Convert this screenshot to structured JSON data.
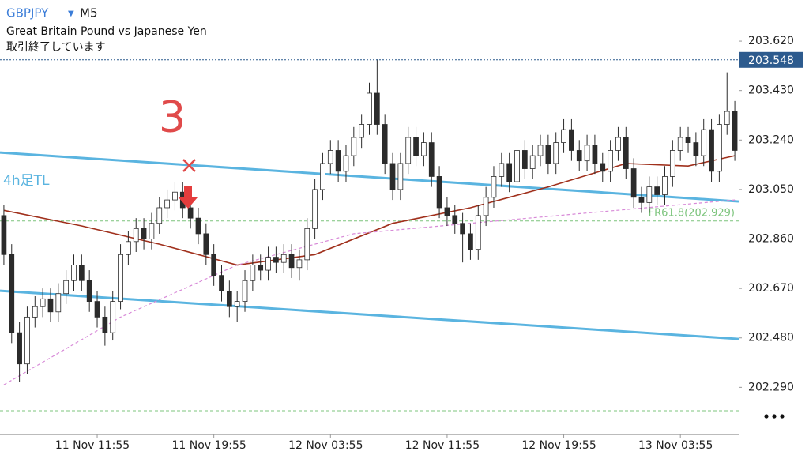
{
  "header": {
    "symbol": "GBPJPY",
    "timeframe": "M5",
    "description": "Great Britain Pound vs Japanese Yen",
    "status": "取引終了しています"
  },
  "chart_data": {
    "type": "candlestick",
    "categories": [
      null,
      null,
      null,
      null,
      null,
      null,
      null,
      null,
      null,
      null,
      null,
      null,
      "11 Nov 11:55",
      null,
      null,
      null,
      null,
      null,
      null,
      null,
      null,
      null,
      null,
      null,
      null,
      null,
      null,
      "11 Nov 19:55",
      null,
      null,
      null,
      null,
      null,
      null,
      null,
      null,
      null,
      null,
      null,
      null,
      null,
      null,
      "12 Nov 03:55",
      null,
      null,
      null,
      null,
      null,
      null,
      null,
      null,
      null,
      null,
      null,
      null,
      null,
      null,
      "12 Nov 11:55",
      null,
      null,
      null,
      null,
      null,
      null,
      null,
      null,
      null,
      null,
      null,
      null,
      null,
      null,
      "12 Nov 19:55",
      null,
      null,
      null,
      null,
      null,
      null,
      null,
      null,
      null,
      null,
      null,
      null,
      null,
      null,
      "13 Nov 03:55",
      null,
      null,
      null,
      null,
      null,
      null,
      null
    ],
    "open": [
      202.95,
      202.8,
      202.5,
      202.38,
      202.56,
      202.6,
      202.63,
      202.58,
      202.65,
      202.7,
      202.76,
      202.7,
      202.62,
      202.56,
      202.5,
      202.62,
      202.8,
      202.85,
      202.9,
      202.86,
      202.92,
      202.98,
      203.01,
      203.04,
      202.98,
      202.94,
      202.88,
      202.8,
      202.72,
      202.66,
      202.6,
      202.62,
      202.7,
      202.76,
      202.74,
      202.79,
      202.77,
      202.8,
      202.75,
      202.78,
      202.9,
      203.05,
      203.15,
      203.2,
      203.12,
      203.18,
      203.25,
      203.3,
      203.42,
      203.3,
      203.15,
      203.05,
      203.15,
      203.25,
      203.18,
      203.23,
      203.1,
      202.98,
      202.95,
      202.92,
      202.88,
      202.82,
      202.95,
      203.02,
      203.1,
      203.15,
      203.08,
      203.2,
      203.13,
      203.18,
      203.22,
      203.15,
      203.23,
      203.28,
      203.2,
      203.16,
      203.22,
      203.15,
      203.12,
      203.2,
      203.25,
      203.13,
      203.02,
      203.0,
      203.06,
      203.03,
      203.1,
      203.2,
      203.25,
      203.23,
      203.18,
      203.28,
      203.12,
      203.3,
      203.35
    ],
    "high": [
      202.99,
      202.84,
      202.54,
      202.6,
      202.64,
      202.67,
      202.67,
      202.69,
      202.74,
      202.8,
      202.8,
      202.74,
      202.66,
      202.6,
      202.66,
      202.84,
      202.89,
      202.94,
      202.94,
      202.96,
      203.02,
      203.05,
      203.08,
      203.08,
      203.02,
      202.98,
      202.92,
      202.84,
      202.76,
      202.7,
      202.66,
      202.74,
      202.8,
      202.8,
      202.83,
      202.83,
      202.84,
      202.84,
      202.82,
      202.94,
      203.09,
      203.19,
      203.24,
      203.24,
      203.22,
      203.29,
      203.34,
      203.46,
      203.55,
      203.34,
      203.19,
      203.19,
      203.29,
      203.29,
      203.27,
      203.27,
      203.14,
      203.02,
      202.99,
      202.96,
      202.92,
      202.99,
      203.06,
      203.14,
      203.19,
      203.19,
      203.24,
      203.24,
      203.22,
      203.26,
      203.26,
      203.27,
      203.32,
      203.32,
      203.24,
      203.26,
      203.26,
      203.19,
      203.24,
      203.29,
      203.29,
      203.17,
      203.06,
      203.1,
      203.1,
      203.14,
      203.24,
      203.29,
      203.29,
      203.27,
      203.32,
      203.32,
      203.34,
      203.5,
      203.39
    ],
    "low": [
      202.76,
      202.46,
      202.31,
      202.34,
      202.52,
      202.56,
      202.54,
      202.54,
      202.61,
      202.66,
      202.66,
      202.58,
      202.52,
      202.45,
      202.47,
      202.59,
      202.76,
      202.81,
      202.82,
      202.82,
      202.88,
      202.94,
      202.97,
      202.94,
      202.9,
      202.84,
      202.76,
      202.68,
      202.62,
      202.56,
      202.54,
      202.58,
      202.66,
      202.7,
      202.7,
      202.73,
      202.73,
      202.71,
      202.7,
      202.74,
      202.86,
      203.01,
      203.11,
      203.08,
      203.08,
      203.14,
      203.21,
      203.26,
      203.26,
      203.11,
      203.01,
      203.01,
      203.11,
      203.14,
      203.14,
      203.06,
      202.94,
      202.91,
      202.88,
      202.77,
      202.78,
      202.78,
      202.91,
      202.98,
      203.06,
      203.04,
      203.04,
      203.09,
      203.09,
      203.14,
      203.11,
      203.11,
      203.19,
      203.16,
      203.12,
      203.12,
      203.11,
      203.08,
      203.08,
      203.16,
      203.09,
      202.98,
      202.96,
      202.96,
      202.99,
      202.99,
      203.06,
      203.16,
      203.19,
      203.14,
      203.14,
      203.08,
      203.08,
      203.26,
      203.16
    ],
    "close": [
      202.8,
      202.5,
      202.38,
      202.56,
      202.6,
      202.63,
      202.58,
      202.65,
      202.7,
      202.76,
      202.7,
      202.62,
      202.56,
      202.5,
      202.62,
      202.8,
      202.85,
      202.9,
      202.86,
      202.92,
      202.98,
      203.01,
      203.04,
      202.98,
      202.94,
      202.88,
      202.8,
      202.72,
      202.66,
      202.6,
      202.62,
      202.7,
      202.76,
      202.74,
      202.79,
      202.77,
      202.8,
      202.75,
      202.78,
      202.9,
      203.05,
      203.15,
      203.2,
      203.12,
      203.18,
      203.25,
      203.3,
      203.42,
      203.3,
      203.15,
      203.05,
      203.15,
      203.25,
      203.18,
      203.23,
      203.1,
      202.98,
      202.95,
      202.92,
      202.88,
      202.82,
      202.95,
      203.02,
      203.1,
      203.15,
      203.08,
      203.2,
      203.13,
      203.18,
      203.22,
      203.15,
      203.23,
      203.28,
      203.2,
      203.16,
      203.22,
      203.15,
      203.12,
      203.2,
      203.25,
      203.13,
      203.02,
      203.0,
      203.06,
      203.03,
      203.1,
      203.2,
      203.25,
      203.23,
      203.18,
      203.28,
      203.12,
      203.3,
      203.35,
      203.2
    ],
    "ylim": [
      202.109,
      203.778
    ],
    "yticks": [
      {
        "value": 203.62,
        "label": "203.620"
      },
      {
        "value": 203.43,
        "label": "203.430"
      },
      {
        "value": 203.24,
        "label": "203.240"
      },
      {
        "value": 203.05,
        "label": "203.050"
      },
      {
        "value": 202.86,
        "label": "202.860"
      },
      {
        "value": 202.67,
        "label": "202.670"
      },
      {
        "value": 202.48,
        "label": "202.480"
      },
      {
        "value": 202.29,
        "label": "202.290"
      }
    ],
    "current_price": 203.548,
    "colors": {
      "candle": "#2b2b2b",
      "current": "#2d5b8e"
    },
    "moving_averages": [
      {
        "color": "#a0301c",
        "dash": false,
        "x": [
          0,
          10,
          20,
          30,
          40,
          50,
          60,
          70,
          80,
          88,
          94
        ],
        "values": [
          202.97,
          202.91,
          202.84,
          202.76,
          202.8,
          202.92,
          202.98,
          203.06,
          203.15,
          203.14,
          203.18
        ]
      },
      {
        "color": "#d88ad8",
        "dash": true,
        "x": [
          0,
          15,
          30,
          45,
          60,
          75,
          94
        ],
        "values": [
          202.3,
          202.56,
          202.76,
          202.88,
          202.92,
          202.96,
          203.01
        ]
      }
    ],
    "trendlines": [
      {
        "label": "4h足TL",
        "color": "#5ab4e0",
        "values": [
          203.192,
          203.004
        ]
      },
      {
        "color": "#5ab4e0",
        "values": [
          202.661,
          202.476
        ]
      }
    ],
    "levels": [
      {
        "value": 202.929,
        "label": "FR61.8(202.929)",
        "color": "#7cc47c"
      },
      {
        "value": 202.2,
        "color": "#7cc47c"
      }
    ],
    "annotations": [
      {
        "text": "3"
      }
    ]
  }
}
